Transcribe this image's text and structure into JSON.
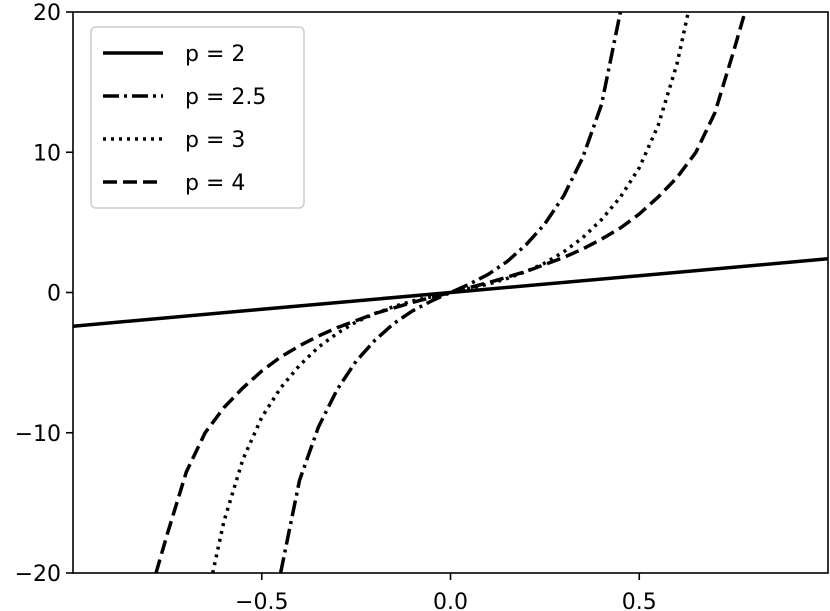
{
  "chart_data": {
    "type": "line",
    "title": "",
    "xlabel": "",
    "ylabel": "",
    "xlim": [
      -1.0,
      1.0
    ],
    "ylim": [
      -20,
      20
    ],
    "grid": false,
    "legend_position": "top-left",
    "x_ticks": [
      {
        "value": -0.5,
        "label": "−0.5"
      },
      {
        "value": 0.0,
        "label": "0.0"
      },
      {
        "value": 0.5,
        "label": "0.5"
      }
    ],
    "y_ticks": [
      {
        "value": -20,
        "label": "−20"
      },
      {
        "value": -10,
        "label": "−10"
      },
      {
        "value": 0,
        "label": "0"
      },
      {
        "value": 10,
        "label": "10"
      },
      {
        "value": 20,
        "label": "20"
      }
    ],
    "series": [
      {
        "name": "p = 2",
        "line_style": "solid",
        "color": "#000000",
        "x": [
          -1.0,
          -0.5,
          0.0,
          0.5,
          1.0
        ],
        "y": [
          -2.4,
          -1.2,
          0.0,
          1.2,
          2.4
        ]
      },
      {
        "name": "p = 2.5",
        "line_style": "dashdot",
        "color": "#000000",
        "x": [
          -0.45,
          -0.4,
          -0.35,
          -0.3,
          -0.25,
          -0.2,
          -0.15,
          -0.1,
          -0.05,
          0.0,
          0.05,
          0.1,
          0.15,
          0.2,
          0.25,
          0.3,
          0.35,
          0.4,
          0.45
        ],
        "y": [
          -20.0,
          -13.4,
          -9.6,
          -6.9,
          -4.9,
          -3.4,
          -2.2,
          -1.3,
          -0.6,
          0.0,
          0.6,
          1.3,
          2.2,
          3.4,
          4.9,
          6.9,
          9.6,
          13.4,
          20.0
        ]
      },
      {
        "name": "p = 3",
        "line_style": "dotted",
        "color": "#000000",
        "x": [
          -0.63,
          -0.6,
          -0.55,
          -0.5,
          -0.45,
          -0.4,
          -0.35,
          -0.3,
          -0.25,
          -0.2,
          -0.15,
          -0.1,
          -0.05,
          0.0,
          0.05,
          0.1,
          0.15,
          0.2,
          0.25,
          0.3,
          0.35,
          0.4,
          0.45,
          0.5,
          0.55,
          0.6,
          0.63
        ],
        "y": [
          -20.0,
          -16.3,
          -11.9,
          -8.9,
          -6.8,
          -5.2,
          -3.9,
          -2.9,
          -2.1,
          -1.5,
          -1.0,
          -0.6,
          -0.3,
          0.0,
          0.3,
          0.6,
          1.0,
          1.5,
          2.1,
          2.9,
          3.9,
          5.2,
          6.8,
          8.9,
          11.9,
          16.3,
          20.0
        ]
      },
      {
        "name": "p = 4",
        "line_style": "dashed",
        "color": "#000000",
        "x": [
          -0.78,
          -0.75,
          -0.7,
          -0.65,
          -0.6,
          -0.55,
          -0.5,
          -0.45,
          -0.4,
          -0.35,
          -0.3,
          -0.25,
          -0.2,
          -0.15,
          -0.1,
          -0.05,
          0.0,
          0.05,
          0.1,
          0.15,
          0.2,
          0.25,
          0.3,
          0.35,
          0.4,
          0.45,
          0.5,
          0.55,
          0.6,
          0.65,
          0.7,
          0.75,
          0.78
        ],
        "y": [
          -20.0,
          -17.2,
          -12.8,
          -10.0,
          -8.2,
          -6.8,
          -5.6,
          -4.6,
          -3.8,
          -3.1,
          -2.5,
          -2.0,
          -1.5,
          -1.1,
          -0.7,
          -0.35,
          0.0,
          0.35,
          0.7,
          1.1,
          1.5,
          2.0,
          2.5,
          3.1,
          3.8,
          4.6,
          5.6,
          6.8,
          8.2,
          10.0,
          12.8,
          17.2,
          20.0
        ]
      }
    ]
  }
}
